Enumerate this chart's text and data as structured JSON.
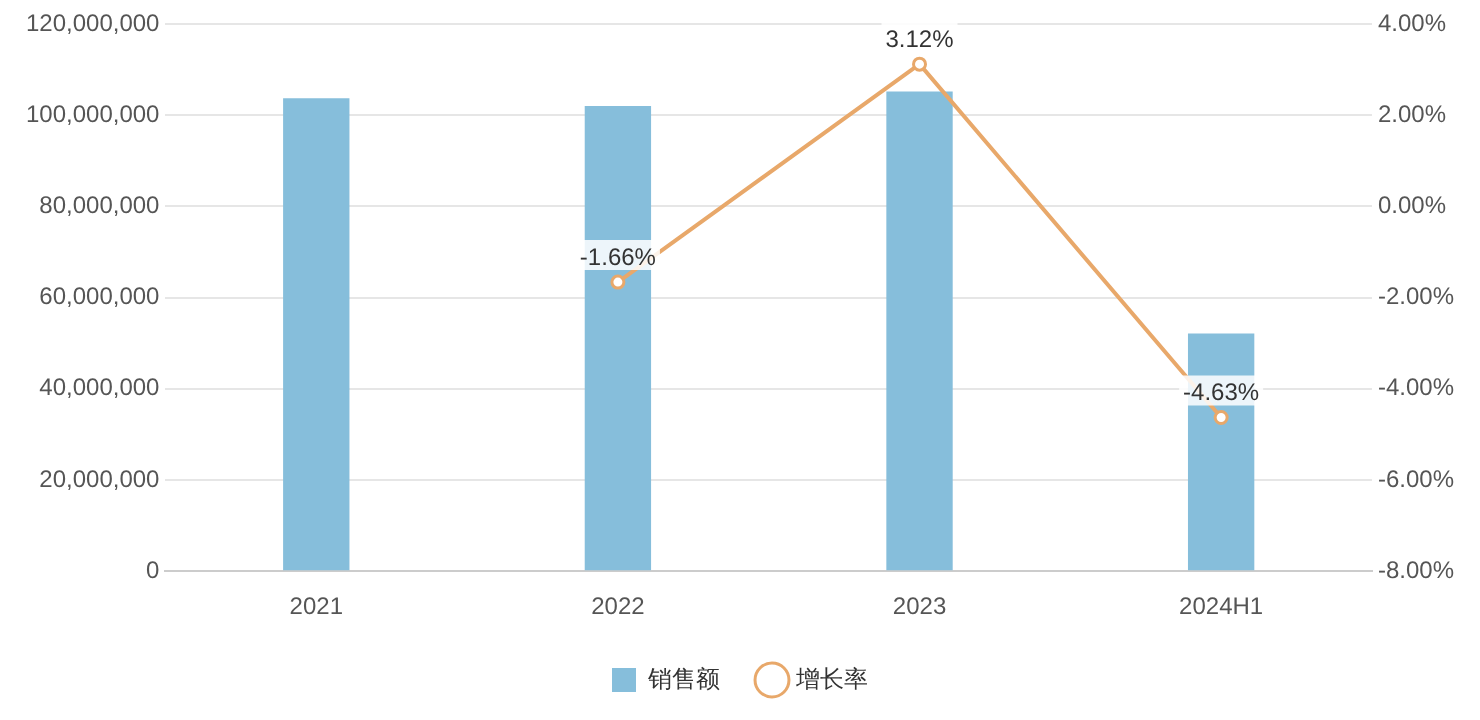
{
  "chart_data": {
    "type": "bar",
    "categories": [
      "2021",
      "2022",
      "2023",
      "2024H1"
    ],
    "series": [
      {
        "name": "销售额",
        "color": "#86bedb",
        "values": [
          103700000,
          102000000,
          105200000,
          52100000
        ]
      },
      {
        "name": "增长率",
        "type": "line",
        "axis": "y2",
        "color": "#e8a86a",
        "values": [
          null,
          -1.66,
          3.12,
          -4.63
        ],
        "value_labels": [
          null,
          "-1.66%",
          "3.12%",
          "-4.63%"
        ]
      }
    ],
    "ylim": [
      0,
      120000000
    ],
    "yticks": [
      {
        "value": 0,
        "label": "0"
      },
      {
        "value": 20000000,
        "label": "20,000,000"
      },
      {
        "value": 40000000,
        "label": "40,000,000"
      },
      {
        "value": 60000000,
        "label": "60,000,000"
      },
      {
        "value": 80000000,
        "label": "80,000,000"
      },
      {
        "value": 100000000,
        "label": "100,000,000"
      },
      {
        "value": 120000000,
        "label": "120,000,000"
      }
    ],
    "y2lim": [
      -8,
      4
    ],
    "y2ticks": [
      {
        "value": -8,
        "label": "-8.00%"
      },
      {
        "value": -6,
        "label": "-6.00%"
      },
      {
        "value": -4,
        "label": "-4.00%"
      },
      {
        "value": -2,
        "label": "-2.00%"
      },
      {
        "value": 0,
        "label": "0.00%"
      },
      {
        "value": 2,
        "label": "2.00%"
      },
      {
        "value": 4,
        "label": "4.00%"
      }
    ],
    "grid": "y",
    "legend": "bottom",
    "marker": "circle",
    "line_style": "solid"
  }
}
